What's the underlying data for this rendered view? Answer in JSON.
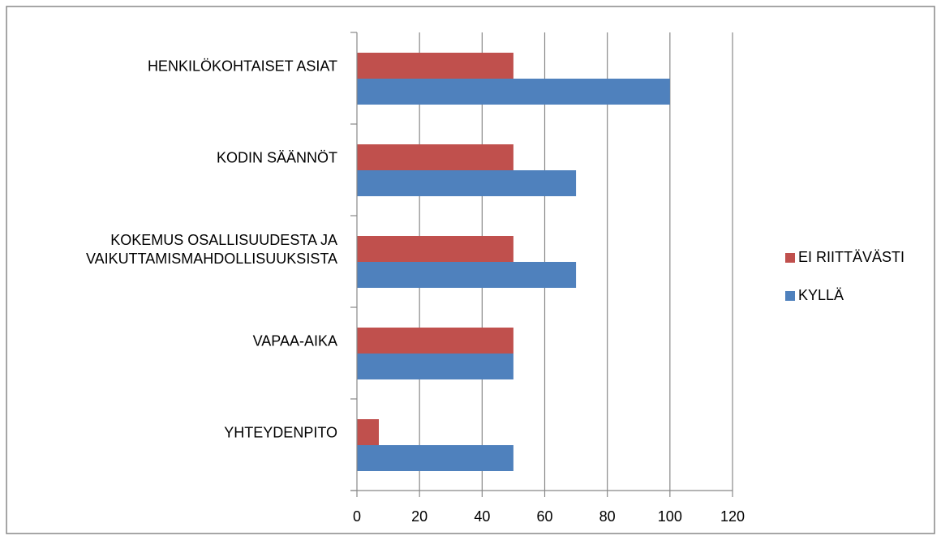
{
  "chart_data": {
    "type": "bar",
    "orientation": "horizontal",
    "categories": [
      "HENKILÖKOHTAISET ASIAT",
      "KODIN SÄÄNNÖT",
      "KOKEMUS OSALLISUUDESTA JA\nVAIKUTTAMISMAHDOLLISUUKSISTA",
      "VAPAA-AIKA",
      "YHTEYDENPITO"
    ],
    "series": [
      {
        "name": "EI RIITTÄVÄSTI",
        "color": "#c0504d",
        "values": [
          50,
          50,
          50,
          50,
          7
        ]
      },
      {
        "name": "KYLLÄ",
        "color": "#4f81bd",
        "values": [
          100,
          70,
          70,
          50,
          50
        ]
      }
    ],
    "xlim": [
      0,
      120
    ],
    "xticks": [
      0,
      20,
      40,
      60,
      80,
      100,
      120
    ],
    "grid": true,
    "legend": "right"
  }
}
